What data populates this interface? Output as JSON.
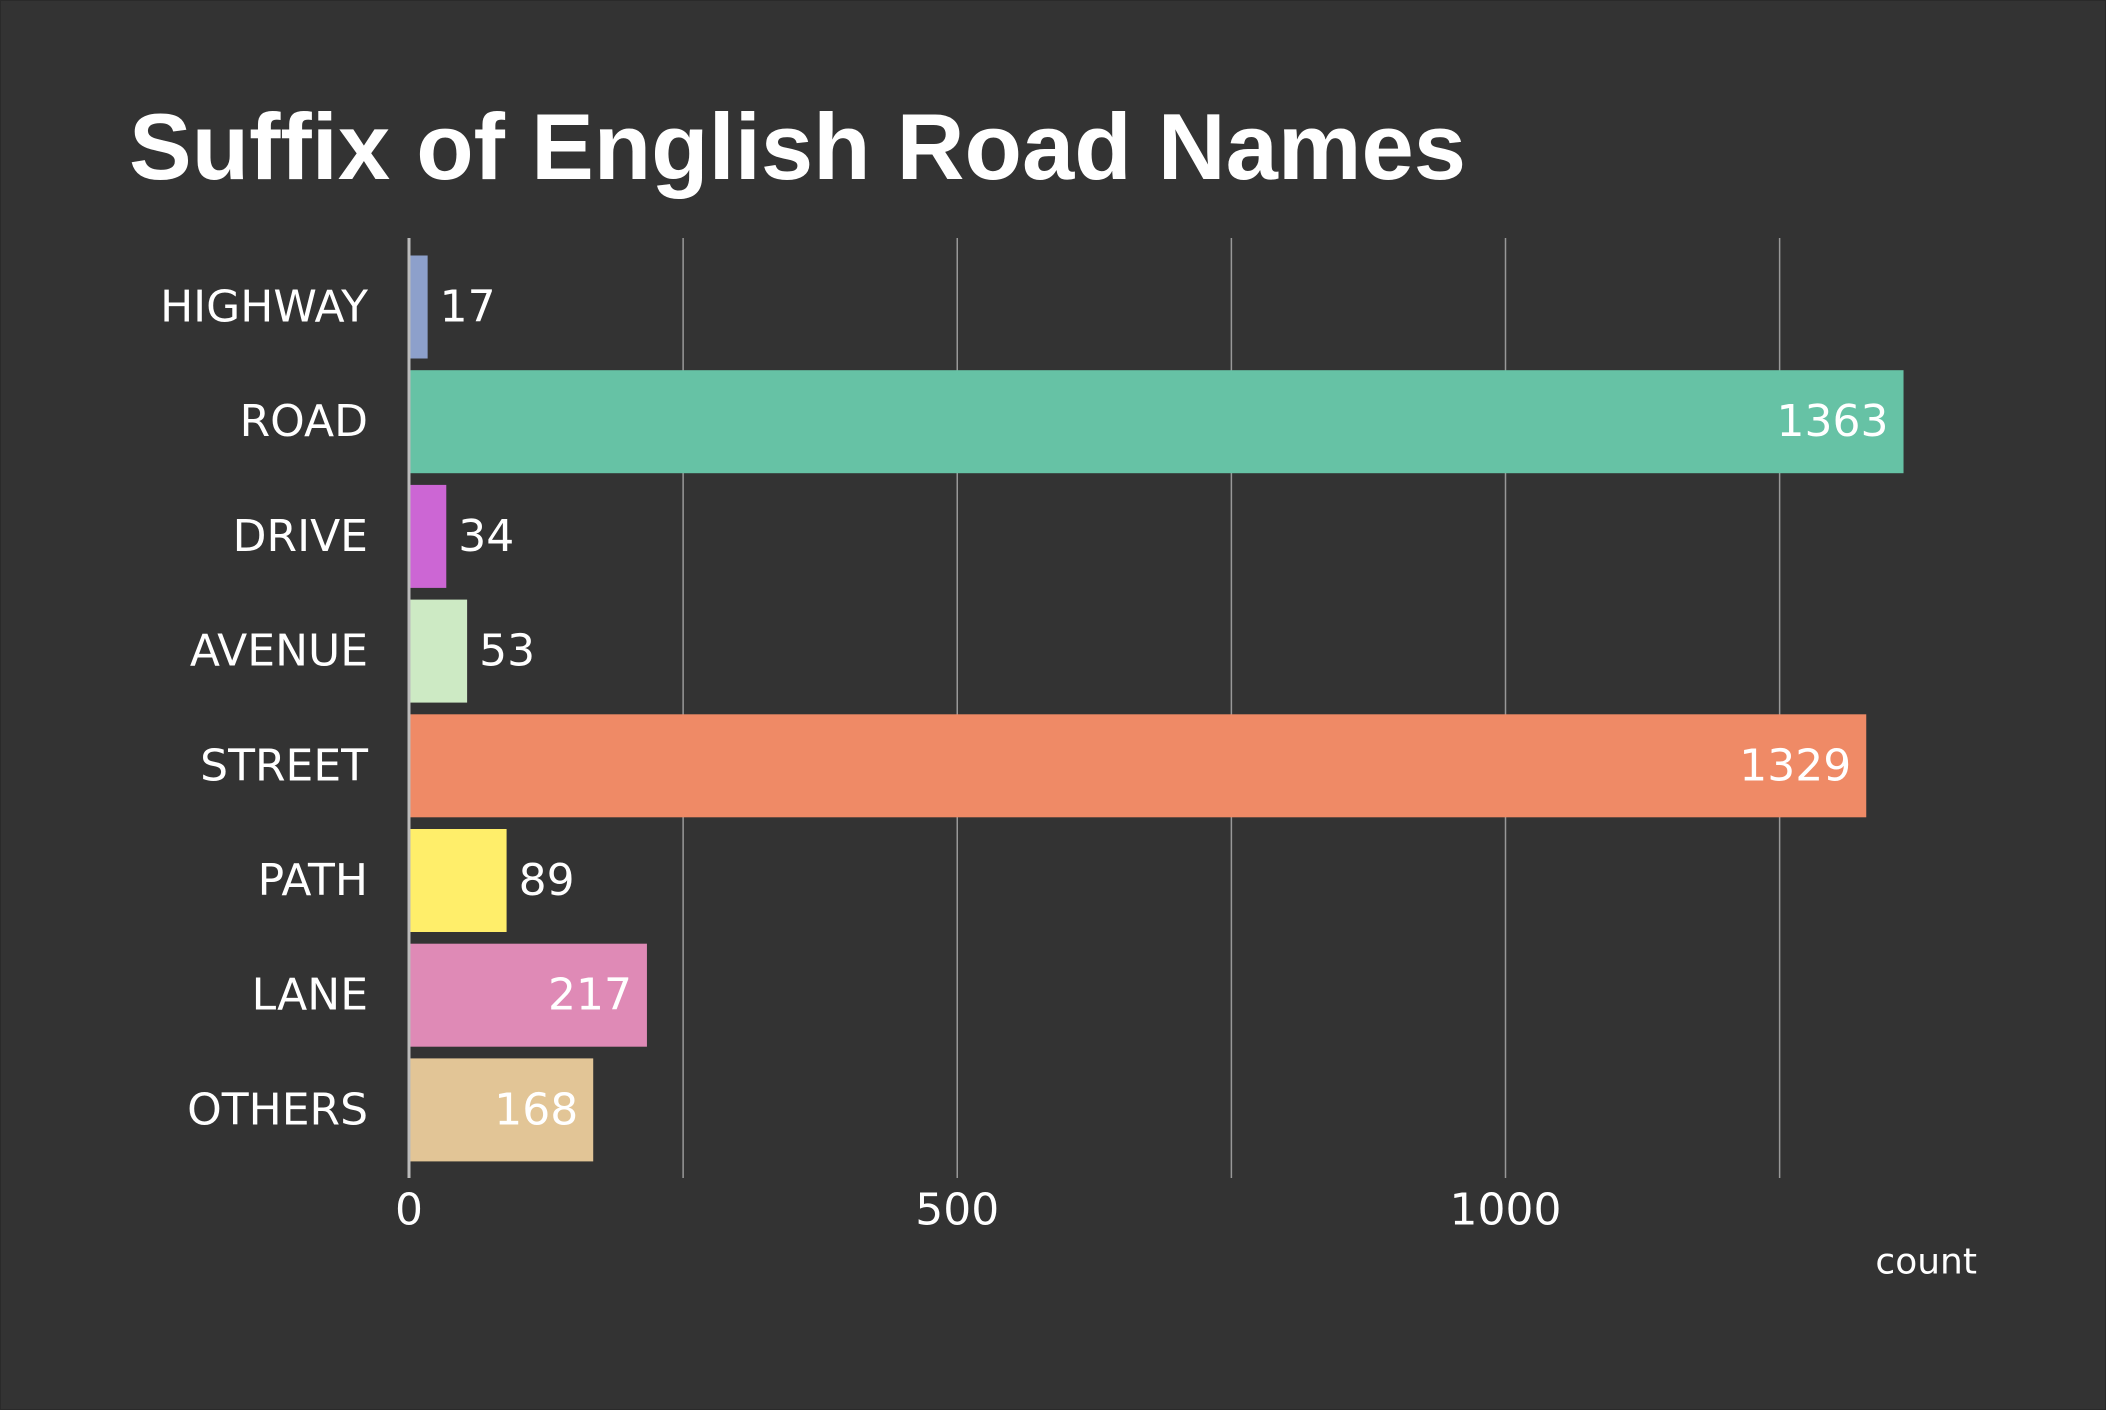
{
  "chart_data": {
    "type": "bar",
    "orientation": "horizontal",
    "title": "Suffix of English Road Names",
    "xlabel": "count",
    "ylabel": "",
    "xlim": [
      0,
      1500
    ],
    "x_ticks": [
      0,
      500,
      1000
    ],
    "x_grid_lines": [
      0,
      250,
      500,
      750,
      1000,
      1250
    ],
    "grid": true,
    "legend": "none",
    "background_color": "#333333",
    "text_color": "#ffffff",
    "grid_color": "#aaaaaa",
    "categories": [
      "HIGHWAY",
      "ROAD",
      "DRIVE",
      "AVENUE",
      "STREET",
      "PATH",
      "LANE",
      "OTHERS"
    ],
    "values": [
      17,
      1363,
      34,
      53,
      1329,
      89,
      217,
      168
    ],
    "value_labels": [
      "17",
      "1363",
      "34",
      "53",
      "1329",
      "89",
      "217",
      "168"
    ],
    "colors": [
      "#8da0cb",
      "#66c2a5",
      "#cc66d4",
      "#cdeac4",
      "#ef8a66",
      "#ffee6a",
      "#df8ab6",
      "#e2c596"
    ]
  }
}
